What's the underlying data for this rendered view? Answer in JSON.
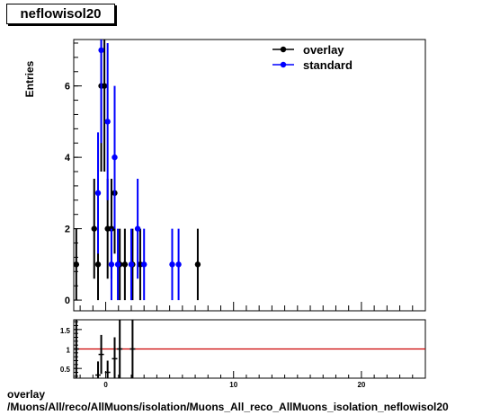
{
  "page": {
    "title": "neflowisol20"
  },
  "footer": {
    "line1": "overlay",
    "line2": "/Muons/All/reco/AllMuons/isolation/Muons_All_reco_AllMuons_isolation_neflowisol20"
  },
  "colors": {
    "overlay": "#000000",
    "standard": "#0000ff",
    "ratio_line": "#cc0000"
  },
  "chart_data": [
    {
      "type": "scatter",
      "title": "neflowisol20",
      "xlabel": "",
      "ylabel": "Entries",
      "xlim": [
        -2.5,
        25
      ],
      "ylim": [
        -0.3,
        7.3
      ],
      "yticks": [
        0,
        2,
        4,
        6
      ],
      "legend": "top-right",
      "series": [
        {
          "name": "overlay",
          "color": "#000000",
          "points": [
            {
              "x": -2.3,
              "y": 1,
              "err": 1
            },
            {
              "x": -0.9,
              "y": 2,
              "err": 1.4
            },
            {
              "x": -0.6,
              "y": 1,
              "err": 1
            },
            {
              "x": -0.35,
              "y": 6,
              "err": 2.4
            },
            {
              "x": -0.1,
              "y": 6,
              "err": 2.4
            },
            {
              "x": 0.15,
              "y": 2,
              "err": 1.4
            },
            {
              "x": 0.45,
              "y": 2,
              "err": 1.4
            },
            {
              "x": 0.7,
              "y": 3,
              "err": 1.7
            },
            {
              "x": 1.1,
              "y": 1,
              "err": 1
            },
            {
              "x": 1.5,
              "y": 1,
              "err": 1
            },
            {
              "x": 2.1,
              "y": 1,
              "err": 1
            },
            {
              "x": 2.7,
              "y": 1,
              "err": 1
            },
            {
              "x": 7.2,
              "y": 1,
              "err": 1
            }
          ]
        },
        {
          "name": "standard",
          "color": "#0000ff",
          "points": [
            {
              "x": -0.6,
              "y": 3,
              "err": 1.7
            },
            {
              "x": -0.35,
              "y": 7,
              "err": 2.6
            },
            {
              "x": 0.15,
              "y": 5,
              "err": 2.2
            },
            {
              "x": 0.45,
              "y": 1,
              "err": 1
            },
            {
              "x": 0.7,
              "y": 4,
              "err": 2
            },
            {
              "x": 0.95,
              "y": 1,
              "err": 1
            },
            {
              "x": 2.0,
              "y": 1,
              "err": 1
            },
            {
              "x": 2.5,
              "y": 2,
              "err": 1.4
            },
            {
              "x": 3.0,
              "y": 1,
              "err": 1
            },
            {
              "x": 5.2,
              "y": 1,
              "err": 1
            },
            {
              "x": 5.7,
              "y": 1,
              "err": 1
            }
          ]
        }
      ]
    },
    {
      "type": "scatter",
      "title": "",
      "xlabel": "",
      "ylabel": "",
      "xlim": [
        -2.5,
        25
      ],
      "ylim": [
        0.25,
        1.75
      ],
      "yticks": [
        0.5,
        1,
        1.5
      ],
      "xticks": [
        0,
        10,
        20
      ],
      "reference_line": 1,
      "series": [
        {
          "name": "",
          "color": "#000000",
          "points": [
            {
              "x": -2.3,
              "y": 1,
              "err": 1.4
            },
            {
              "x": -0.6,
              "y": 0.33,
              "err": 0.35
            },
            {
              "x": -0.35,
              "y": 0.86,
              "err": 0.5
            },
            {
              "x": 0.15,
              "y": 0.4,
              "err": 0.3
            },
            {
              "x": 0.7,
              "y": 0.75,
              "err": 0.55
            },
            {
              "x": 1.1,
              "y": 1,
              "err": 1.4
            },
            {
              "x": 2.1,
              "y": 1,
              "err": 1.4
            }
          ]
        }
      ]
    }
  ]
}
